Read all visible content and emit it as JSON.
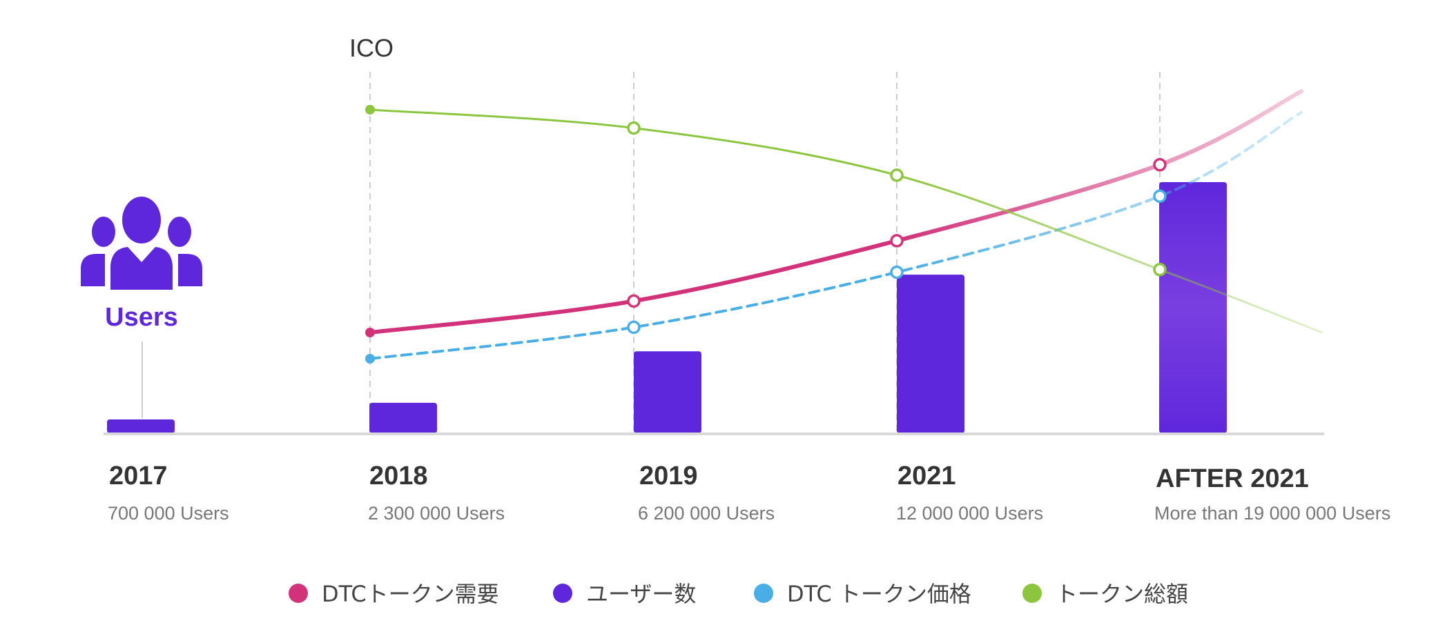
{
  "chart_data": {
    "type": "bar",
    "categories": [
      "2017",
      "2018",
      "2019",
      "2021",
      "AFTER 2021"
    ],
    "category_sublabels": [
      "700 000 Users",
      "2 300 000 Users",
      "6 200 000 Users",
      "12 000 000 Users",
      "More than 19 000 000 Users"
    ],
    "bar_series": {
      "name": "ユーザー数",
      "values": [
        700000,
        2300000,
        6200000,
        12000000,
        19000000
      ],
      "color": "#5f27dc"
    },
    "line_series": [
      {
        "name": "DTCトークン需要",
        "color": "#d1327a",
        "style": "solid",
        "values": [
          null,
          1.0,
          2.2,
          4.5,
          7.4
        ]
      },
      {
        "name": "DTC トークン価格",
        "color": "#4aaee6",
        "style": "dashed",
        "values": [
          null,
          0.0,
          1.2,
          3.3,
          6.2
        ]
      },
      {
        "name": "トークン総額",
        "color": "#8cc63f",
        "style": "solid",
        "values": [
          null,
          9.5,
          8.8,
          7.0,
          3.4
        ]
      }
    ],
    "annotation": "ICO",
    "icon_label": "Users",
    "grid": false,
    "legend_position": "bottom"
  },
  "icon_color": "#5f27dc",
  "axis_color": "#d9d9d9",
  "text_color": "#333333",
  "sub_text_color": "#777777"
}
